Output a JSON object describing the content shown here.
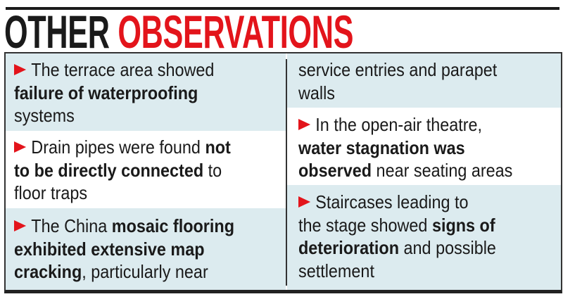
{
  "title": {
    "part1": "OTHER",
    "part2": "OBSERVATIONS"
  },
  "colors": {
    "accent": "#e3141b",
    "band": "#dcebef",
    "text": "#1a1a1a"
  },
  "bullet_icon": "red-arrowhead",
  "left_items": [
    {
      "lines": [
        [
          {
            "t": "The terrace area showed",
            "b": false
          }
        ],
        [
          {
            "t": "failure of waterproofing",
            "b": true
          }
        ],
        [
          {
            "t": "systems",
            "b": false
          }
        ]
      ]
    },
    {
      "lines": [
        [
          {
            "t": "Drain pipes were found ",
            "b": false
          },
          {
            "t": "not",
            "b": true
          }
        ],
        [
          {
            "t": "to be directly connected",
            "b": true
          },
          {
            "t": " to",
            "b": false
          }
        ],
        [
          {
            "t": "floor traps",
            "b": false
          }
        ]
      ]
    },
    {
      "lines": [
        [
          {
            "t": "The China ",
            "b": false
          },
          {
            "t": "mosaic flooring",
            "b": true
          }
        ],
        [
          {
            "t": "exhibited extensive map",
            "b": true
          }
        ],
        [
          {
            "t": "cracking",
            "b": true
          },
          {
            "t": ", particularly near",
            "b": false
          }
        ]
      ]
    }
  ],
  "right_items": [
    {
      "lines": [
        [
          {
            "t": "service entries and parapet",
            "b": false
          }
        ],
        [
          {
            "t": "walls",
            "b": false
          }
        ]
      ]
    },
    {
      "lines": [
        [
          {
            "t": "In the open-air theatre,",
            "b": false
          }
        ],
        [
          {
            "t": "water stagnation was",
            "b": true
          }
        ],
        [
          {
            "t": "observed",
            "b": true
          },
          {
            "t": " near seating areas",
            "b": false
          }
        ]
      ]
    },
    {
      "lines": [
        [
          {
            "t": "Staircases leading to",
            "b": false
          }
        ],
        [
          {
            "t": "the stage showed ",
            "b": false
          },
          {
            "t": "signs of",
            "b": true
          }
        ],
        [
          {
            "t": "deterioration",
            "b": true
          },
          {
            "t": " and possible",
            "b": false
          }
        ],
        [
          {
            "t": "settlement",
            "b": false
          }
        ]
      ]
    }
  ]
}
